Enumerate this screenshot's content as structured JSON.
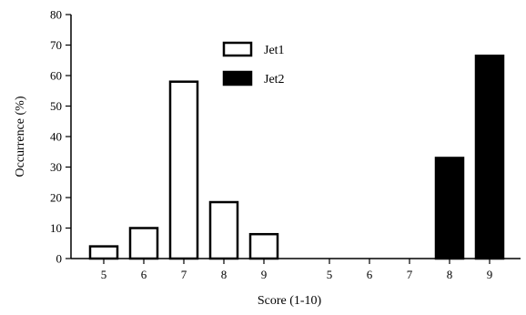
{
  "chart_data": {
    "type": "bar",
    "xlabel": "Score (1-10)",
    "ylabel": "Occurrence (%)",
    "ylim": [
      0,
      80
    ],
    "yticks": [
      0,
      10,
      20,
      30,
      40,
      50,
      60,
      70,
      80
    ],
    "grid": false,
    "legend_position": "top-center",
    "groups": [
      {
        "series": "Jet1",
        "categories": [
          "5",
          "6",
          "7",
          "8",
          "9"
        ],
        "values": [
          4,
          10,
          58,
          18.5,
          8
        ]
      },
      {
        "series": "Jet2",
        "categories": [
          "5",
          "6",
          "7",
          "8",
          "9"
        ],
        "values": [
          0,
          0,
          0,
          33,
          66.5
        ]
      }
    ],
    "series": [
      {
        "name": "Jet1",
        "fill": "#ffffff",
        "stroke": "#000000"
      },
      {
        "name": "Jet2",
        "fill": "#000000",
        "stroke": "#000000"
      }
    ]
  }
}
